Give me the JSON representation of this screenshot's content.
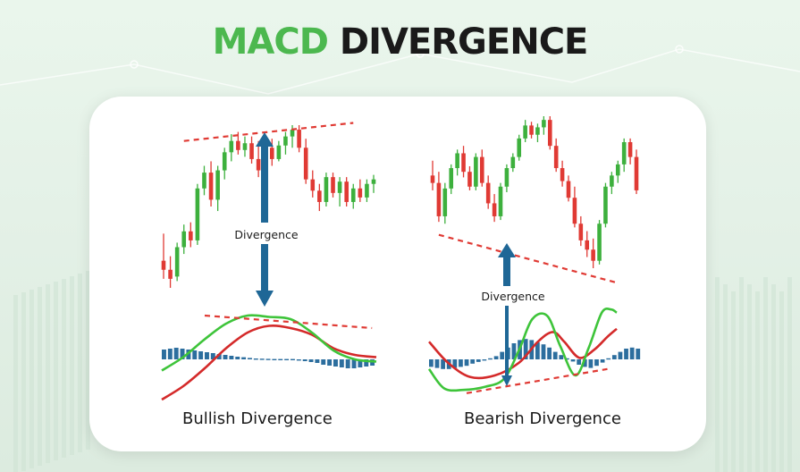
{
  "title": {
    "part1": "MACD",
    "part2": "DIVERGENCE"
  },
  "colors": {
    "bull": "#3db03d",
    "bear": "#e03a34",
    "histogram": "#2c6e9e",
    "arrow": "#1f6796",
    "trendline": "#e03a34",
    "macd_line": "#3ec43a",
    "signal_line": "#d42a2a",
    "title_green": "#4cb84f"
  },
  "chart_data": [
    {
      "type": "candlestick+macd",
      "name": "Bullish Divergence",
      "caption": "Bullish Divergence",
      "annotation": "Divergence",
      "candles": [
        {
          "o": 40,
          "h": 52,
          "l": 32,
          "c": 36
        },
        {
          "o": 36,
          "h": 42,
          "l": 28,
          "c": 32
        },
        {
          "o": 33,
          "h": 48,
          "l": 31,
          "c": 46
        },
        {
          "o": 46,
          "h": 56,
          "l": 43,
          "c": 53
        },
        {
          "o": 53,
          "h": 57,
          "l": 46,
          "c": 49
        },
        {
          "o": 49,
          "h": 74,
          "l": 47,
          "c": 72
        },
        {
          "o": 72,
          "h": 82,
          "l": 69,
          "c": 79
        },
        {
          "o": 79,
          "h": 84,
          "l": 64,
          "c": 67
        },
        {
          "o": 67,
          "h": 82,
          "l": 62,
          "c": 80
        },
        {
          "o": 80,
          "h": 90,
          "l": 76,
          "c": 88
        },
        {
          "o": 88,
          "h": 96,
          "l": 84,
          "c": 93
        },
        {
          "o": 93,
          "h": 97,
          "l": 87,
          "c": 89
        },
        {
          "o": 89,
          "h": 95,
          "l": 86,
          "c": 92
        },
        {
          "o": 92,
          "h": 95,
          "l": 83,
          "c": 85
        },
        {
          "o": 85,
          "h": 93,
          "l": 77,
          "c": 80
        },
        {
          "o": 80,
          "h": 92,
          "l": 78,
          "c": 90
        },
        {
          "o": 90,
          "h": 94,
          "l": 82,
          "c": 85
        },
        {
          "o": 85,
          "h": 93,
          "l": 84,
          "c": 91
        },
        {
          "o": 91,
          "h": 97,
          "l": 87,
          "c": 95
        },
        {
          "o": 95,
          "h": 100,
          "l": 90,
          "c": 98
        },
        {
          "o": 98,
          "h": 100,
          "l": 88,
          "c": 90
        },
        {
          "o": 90,
          "h": 94,
          "l": 74,
          "c": 76
        },
        {
          "o": 76,
          "h": 80,
          "l": 68,
          "c": 71
        },
        {
          "o": 71,
          "h": 74,
          "l": 62,
          "c": 66
        },
        {
          "o": 66,
          "h": 79,
          "l": 64,
          "c": 77
        },
        {
          "o": 77,
          "h": 79,
          "l": 68,
          "c": 70
        },
        {
          "o": 70,
          "h": 77,
          "l": 64,
          "c": 75
        },
        {
          "o": 75,
          "h": 77,
          "l": 64,
          "c": 66
        },
        {
          "o": 66,
          "h": 74,
          "l": 63,
          "c": 72
        },
        {
          "o": 72,
          "h": 76,
          "l": 66,
          "c": 68
        },
        {
          "o": 68,
          "h": 76,
          "l": 66,
          "c": 74
        },
        {
          "o": 74,
          "h": 78,
          "l": 70,
          "c": 76
        }
      ],
      "price_trendline": [
        [
          3,
          93
        ],
        [
          28,
          101
        ]
      ],
      "histogram": [
        0.55,
        0.6,
        0.65,
        0.6,
        0.55,
        0.5,
        0.45,
        0.4,
        0.35,
        0.3,
        0.25,
        0.2,
        0.15,
        0.12,
        0.08,
        0.05,
        0.04,
        0.03,
        0.02,
        0.02,
        0.02,
        0.02,
        -0.05,
        -0.1,
        -0.15,
        -0.2,
        -0.3,
        -0.35,
        -0.4,
        -0.45,
        -0.5,
        -0.5,
        -0.45,
        -0.4,
        -0.35
      ],
      "macd_line": [
        [
          0,
          -0.25
        ],
        [
          0.1,
          0.05
        ],
        [
          0.2,
          0.45
        ],
        [
          0.3,
          0.8
        ],
        [
          0.4,
          0.98
        ],
        [
          0.5,
          0.95
        ],
        [
          0.6,
          0.9
        ],
        [
          0.7,
          0.6
        ],
        [
          0.8,
          0.2
        ],
        [
          0.9,
          0
        ],
        [
          1,
          -0.05
        ]
      ],
      "signal_line": [
        [
          0,
          -0.9
        ],
        [
          0.1,
          -0.6
        ],
        [
          0.2,
          -0.2
        ],
        [
          0.3,
          0.25
        ],
        [
          0.4,
          0.6
        ],
        [
          0.5,
          0.75
        ],
        [
          0.6,
          0.7
        ],
        [
          0.7,
          0.55
        ],
        [
          0.8,
          0.25
        ],
        [
          0.9,
          0.1
        ],
        [
          1,
          0.05
        ]
      ],
      "macd_trendline": [
        [
          0.2,
          0.98
        ],
        [
          0.98,
          0.7
        ]
      ]
    },
    {
      "type": "candlestick+macd",
      "name": "Bearish Divergence",
      "caption": "Bearish Divergence",
      "annotation": "Divergence",
      "candles": [
        {
          "o": 70,
          "h": 78,
          "l": 62,
          "c": 66
        },
        {
          "o": 66,
          "h": 72,
          "l": 45,
          "c": 48
        },
        {
          "o": 48,
          "h": 66,
          "l": 44,
          "c": 63
        },
        {
          "o": 63,
          "h": 76,
          "l": 60,
          "c": 74
        },
        {
          "o": 74,
          "h": 84,
          "l": 70,
          "c": 82
        },
        {
          "o": 82,
          "h": 86,
          "l": 69,
          "c": 72
        },
        {
          "o": 72,
          "h": 75,
          "l": 62,
          "c": 64
        },
        {
          "o": 64,
          "h": 82,
          "l": 62,
          "c": 80
        },
        {
          "o": 80,
          "h": 84,
          "l": 64,
          "c": 66
        },
        {
          "o": 66,
          "h": 70,
          "l": 52,
          "c": 55
        },
        {
          "o": 55,
          "h": 60,
          "l": 45,
          "c": 48
        },
        {
          "o": 48,
          "h": 66,
          "l": 46,
          "c": 64
        },
        {
          "o": 64,
          "h": 76,
          "l": 61,
          "c": 74
        },
        {
          "o": 74,
          "h": 82,
          "l": 72,
          "c": 80
        },
        {
          "o": 80,
          "h": 92,
          "l": 78,
          "c": 90
        },
        {
          "o": 90,
          "h": 100,
          "l": 88,
          "c": 97
        },
        {
          "o": 97,
          "h": 99,
          "l": 90,
          "c": 92
        },
        {
          "o": 92,
          "h": 98,
          "l": 88,
          "c": 96
        },
        {
          "o": 96,
          "h": 102,
          "l": 92,
          "c": 100
        },
        {
          "o": 100,
          "h": 102,
          "l": 84,
          "c": 86
        },
        {
          "o": 86,
          "h": 90,
          "l": 72,
          "c": 74
        },
        {
          "o": 74,
          "h": 78,
          "l": 64,
          "c": 67
        },
        {
          "o": 67,
          "h": 70,
          "l": 56,
          "c": 58
        },
        {
          "o": 58,
          "h": 64,
          "l": 42,
          "c": 44
        },
        {
          "o": 44,
          "h": 48,
          "l": 32,
          "c": 35
        },
        {
          "o": 35,
          "h": 40,
          "l": 26,
          "c": 30
        },
        {
          "o": 30,
          "h": 36,
          "l": 20,
          "c": 24
        },
        {
          "o": 24,
          "h": 46,
          "l": 22,
          "c": 44
        },
        {
          "o": 44,
          "h": 66,
          "l": 42,
          "c": 64
        },
        {
          "o": 64,
          "h": 72,
          "l": 60,
          "c": 70
        },
        {
          "o": 70,
          "h": 78,
          "l": 66,
          "c": 76
        },
        {
          "o": 76,
          "h": 90,
          "l": 72,
          "c": 88
        },
        {
          "o": 88,
          "h": 90,
          "l": 76,
          "c": 80
        },
        {
          "o": 80,
          "h": 84,
          "l": 60,
          "c": 62
        }
      ],
      "price_trendline": [
        [
          1,
          38
        ],
        [
          30,
          12
        ]
      ],
      "histogram": [
        -0.35,
        -0.4,
        -0.45,
        -0.45,
        -0.4,
        -0.35,
        -0.3,
        -0.2,
        -0.12,
        -0.05,
        0.05,
        0.15,
        0.35,
        0.55,
        0.75,
        0.9,
        0.95,
        0.9,
        0.8,
        0.7,
        0.55,
        0.35,
        0.2,
        0.05,
        -0.1,
        -0.25,
        -0.35,
        -0.4,
        -0.3,
        -0.15,
        0.05,
        0.2,
        0.35,
        0.5,
        0.55,
        0.5
      ],
      "macd_line": [
        [
          0,
          -0.3
        ],
        [
          0.08,
          -0.9
        ],
        [
          0.18,
          -0.95
        ],
        [
          0.3,
          -0.85
        ],
        [
          0.4,
          -0.6
        ],
        [
          0.48,
          0.3
        ],
        [
          0.55,
          1.25
        ],
        [
          0.63,
          1.35
        ],
        [
          0.7,
          0.4
        ],
        [
          0.78,
          -0.5
        ],
        [
          0.85,
          0.35
        ],
        [
          0.92,
          1.45
        ],
        [
          0.97,
          1.55
        ],
        [
          1,
          1.45
        ]
      ],
      "signal_line": [
        [
          0,
          0.55
        ],
        [
          0.1,
          -0.1
        ],
        [
          0.22,
          -0.55
        ],
        [
          0.35,
          -0.5
        ],
        [
          0.48,
          -0.1
        ],
        [
          0.58,
          0.55
        ],
        [
          0.66,
          0.85
        ],
        [
          0.72,
          0.55
        ],
        [
          0.8,
          0.05
        ],
        [
          0.88,
          0.3
        ],
        [
          0.95,
          0.7
        ],
        [
          1,
          0.95
        ]
      ],
      "macd_trendline": [
        [
          0.2,
          -1.05
        ],
        [
          0.95,
          -0.3
        ]
      ]
    }
  ]
}
